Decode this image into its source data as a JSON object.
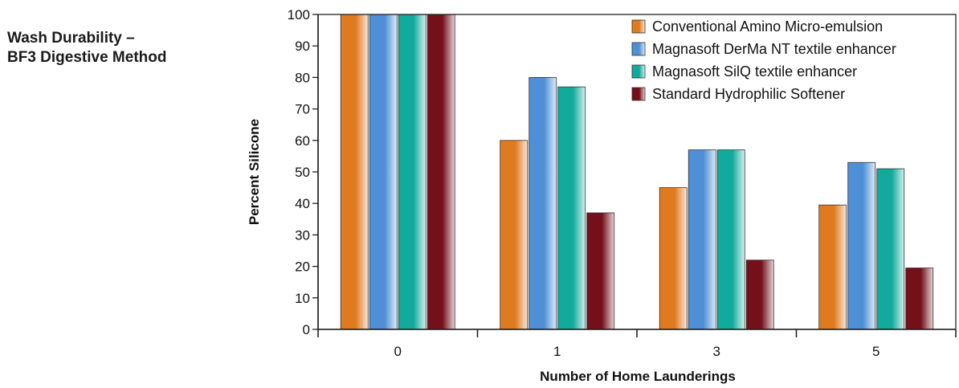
{
  "side_title": {
    "line1": "Wash Durability –",
    "line2": "BF3 Digestive Method"
  },
  "chart_data": {
    "type": "bar",
    "title": "",
    "xlabel": "Number of Home Launderings",
    "ylabel": "Percent Silicone",
    "categories": [
      "0",
      "1",
      "3",
      "5"
    ],
    "ylim": [
      0,
      100
    ],
    "yticks": [
      0,
      10,
      20,
      30,
      40,
      50,
      60,
      70,
      80,
      90,
      100
    ],
    "grid": false,
    "legend_position": "top-right",
    "series": [
      {
        "name": "Conventional Amino Micro-emulsion",
        "color": "#e07a1f",
        "values": [
          100,
          60,
          45,
          39.5
        ]
      },
      {
        "name": "Magnasoft DerMa NT textile enhancer",
        "color": "#4f8fd6",
        "values": [
          100,
          80,
          57,
          53
        ]
      },
      {
        "name": "Magnasoft SilQ textile enhancer",
        "color": "#12aa9c",
        "values": [
          100,
          77,
          57,
          51
        ]
      },
      {
        "name": "Standard Hydrophilic Softener",
        "color": "#74101a",
        "values": [
          100,
          37,
          22,
          19.5
        ]
      }
    ]
  }
}
